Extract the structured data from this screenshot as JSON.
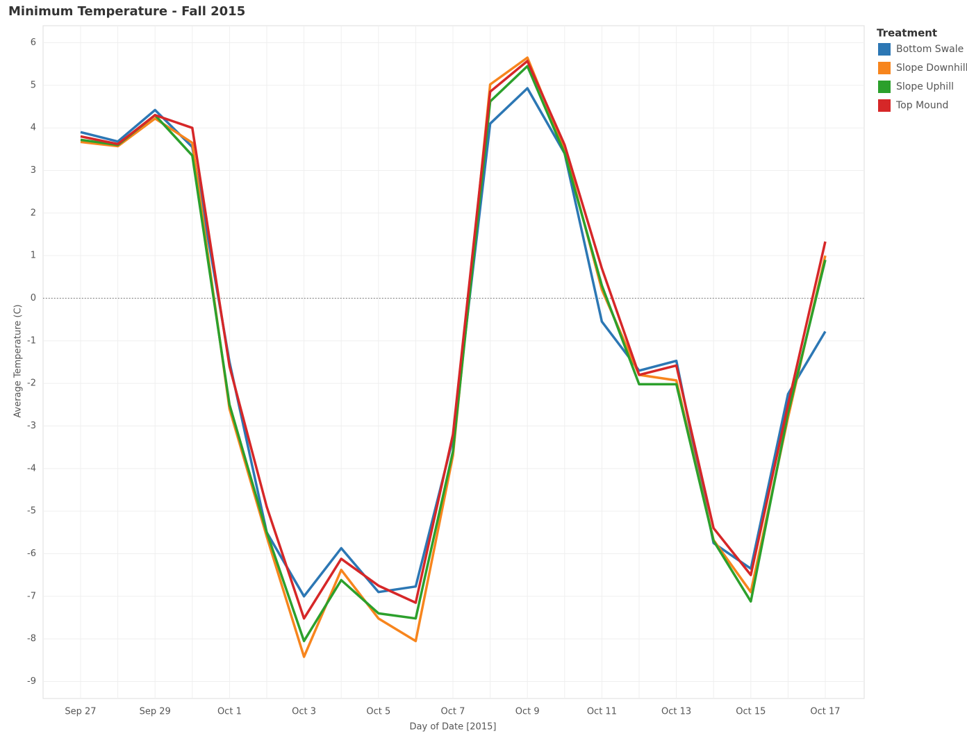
{
  "chart_data": {
    "type": "line",
    "title": "Minimum Temperature - Fall 2015",
    "x_label": "Day of Date [2015]",
    "y_label": "Average Temperature (C)",
    "legend_title": "Treatment",
    "legend_position": "right",
    "categories": [
      "Sep 27",
      null,
      "Sep 29",
      null,
      "Oct 1",
      null,
      "Oct 3",
      null,
      "Oct 5",
      null,
      "Oct 7",
      null,
      "Oct 9",
      null,
      "Oct 11",
      null,
      "Oct 13",
      null,
      "Oct 15",
      null,
      "Oct 17"
    ],
    "ylim": [
      -9.4,
      6.4
    ],
    "yticks": [
      -9,
      -8,
      -7,
      -6,
      -5,
      -4,
      -3,
      -2,
      -1,
      0,
      1,
      2,
      3,
      4,
      5,
      6
    ],
    "grid": true,
    "zero_line": true,
    "series": [
      {
        "name": "Bottom Swale",
        "color": "#2c77b4",
        "values": [
          3.9,
          3.68,
          4.42,
          3.55,
          -1.5,
          -5.5,
          -7.0,
          -5.87,
          -6.9,
          -6.77,
          -3.3,
          4.1,
          4.93,
          3.4,
          -0.55,
          -1.7,
          -1.47,
          -5.75,
          -6.35,
          -2.25,
          -0.78
        ]
      },
      {
        "name": "Slope Downhill",
        "color": "#f7851d",
        "values": [
          3.67,
          3.57,
          4.22,
          3.65,
          -2.6,
          -5.6,
          -8.42,
          -6.38,
          -7.52,
          -8.05,
          -3.7,
          5.02,
          5.65,
          3.5,
          0.2,
          -1.8,
          -1.93,
          -5.68,
          -6.9,
          -2.8,
          1.0
        ]
      },
      {
        "name": "Slope Uphill",
        "color": "#2ca02c",
        "values": [
          3.72,
          3.6,
          4.3,
          3.35,
          -2.5,
          -5.5,
          -8.05,
          -6.62,
          -7.4,
          -7.52,
          -3.6,
          4.62,
          5.45,
          3.4,
          0.3,
          -2.02,
          -2.02,
          -5.7,
          -7.12,
          -2.7,
          0.9
        ]
      },
      {
        "name": "Top Mound",
        "color": "#d62728",
        "values": [
          3.8,
          3.62,
          4.3,
          4.0,
          -1.6,
          -4.9,
          -7.52,
          -6.12,
          -6.75,
          -7.15,
          -3.2,
          4.85,
          5.57,
          3.6,
          0.7,
          -1.8,
          -1.58,
          -5.4,
          -6.5,
          -2.5,
          1.33
        ]
      }
    ]
  }
}
